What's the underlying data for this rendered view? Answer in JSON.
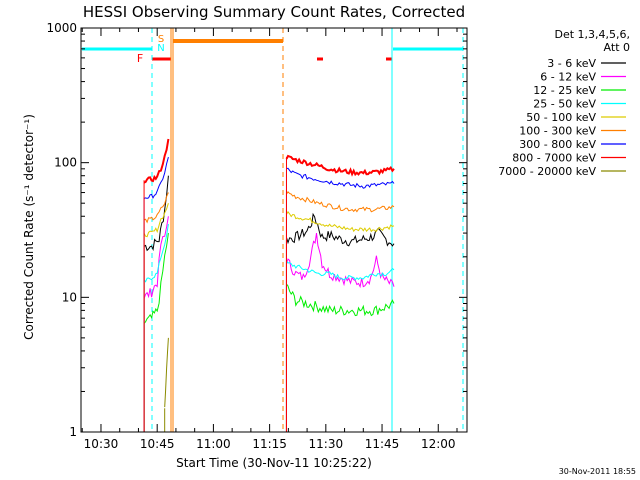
{
  "chart_data": {
    "type": "line",
    "title": "HESSI Observing Summary Count Rates, Corrected",
    "xlabel": "Start Time (30-Nov-11 10:25:22)",
    "ylabel": "Corrected Count Rate (s⁻¹ detector⁻¹)",
    "yscale": "log",
    "ylim": [
      1,
      1000
    ],
    "xlim_min": [
      24.67,
      127.67
    ],
    "x_unit": "minutes after 10:00 UT",
    "x_ticks": [
      {
        "value": 30,
        "label": "10:30"
      },
      {
        "value": 45,
        "label": "10:45"
      },
      {
        "value": 60,
        "label": "11:00"
      },
      {
        "value": 75,
        "label": "11:15"
      },
      {
        "value": 90,
        "label": "11:30"
      },
      {
        "value": 105,
        "label": "11:45"
      },
      {
        "value": 120,
        "label": "12:00"
      }
    ],
    "y_ticks": [
      {
        "value": 1,
        "label": "1"
      },
      {
        "value": 10,
        "label": "10"
      },
      {
        "value": 100,
        "label": "100"
      },
      {
        "value": 1000,
        "label": "1000"
      }
    ],
    "legend": {
      "header1": "Det 1,3,4,5,6,",
      "header2": "Att 0",
      "placement": "right"
    },
    "series": [
      {
        "name": "3 - 6 keV",
        "color": "#000000",
        "x": [
          41.5,
          43.5,
          45.5,
          47.0,
          48.0,
          79.5,
          82,
          85,
          87,
          89,
          91,
          94,
          97,
          100,
          102,
          104,
          106,
          108.2
        ],
        "y": [
          24,
          24,
          27,
          45,
          80,
          27,
          28,
          31,
          40,
          28,
          29,
          27,
          26,
          27,
          28,
          30,
          27,
          25
        ]
      },
      {
        "name": "6 - 12 keV",
        "color": "#ff00ff",
        "x": [
          41.5,
          43.5,
          45,
          46,
          47,
          48,
          79.5,
          82,
          84,
          86,
          87.5,
          89,
          91,
          94,
          97,
          100,
          102,
          103.5,
          105,
          106.5,
          108.2
        ],
        "y": [
          10,
          11,
          13,
          25,
          28,
          40,
          19,
          15,
          14,
          20,
          30,
          18,
          15,
          14,
          13,
          13,
          14,
          19,
          14,
          13,
          12
        ]
      },
      {
        "name": "12 - 25 keV",
        "color": "#00ee00",
        "x": [
          41.5,
          43.5,
          45,
          46,
          47,
          48,
          79.5,
          82,
          85,
          88,
          91,
          94,
          97,
          100,
          103,
          106,
          108.2
        ],
        "y": [
          6.5,
          7,
          8,
          12,
          20,
          30,
          12,
          9.5,
          9,
          8.5,
          8,
          8,
          8,
          8,
          8,
          8.5,
          9
        ]
      },
      {
        "name": "25 - 50 keV",
        "color": "#00ffff",
        "x": [
          41.5,
          43.5,
          45,
          46,
          47,
          48,
          79.5,
          82,
          85,
          88,
          91,
          94,
          97,
          100,
          103,
          106,
          108.2
        ],
        "y": [
          13,
          14,
          15,
          20,
          25,
          35,
          18,
          17,
          16,
          15,
          15,
          14,
          14,
          14,
          15,
          15,
          16
        ]
      },
      {
        "name": "50 - 100 keV",
        "color": "#ddcc00",
        "x": [
          41.5,
          43.5,
          45,
          46,
          47,
          48,
          79.5,
          82,
          85,
          88,
          91,
          94,
          97,
          100,
          103,
          106,
          108.2
        ],
        "y": [
          29,
          30,
          32,
          38,
          42,
          50,
          42,
          40,
          38,
          36,
          34,
          33,
          32,
          32,
          32,
          33,
          34
        ]
      },
      {
        "name": "100 - 300 keV",
        "color": "#ff7f00",
        "x": [
          41.5,
          43.5,
          45,
          46,
          47,
          48,
          79.5,
          82,
          85,
          88,
          91,
          94,
          97,
          100,
          103,
          106,
          108.2
        ],
        "y": [
          37,
          38,
          40,
          45,
          50,
          60,
          60,
          56,
          53,
          50,
          48,
          46,
          45,
          45,
          45,
          46,
          47
        ]
      },
      {
        "name": "300 - 800 keV",
        "color": "#0000ff",
        "x": [
          41.5,
          43.5,
          45,
          46,
          47,
          48,
          79.5,
          82,
          85,
          88,
          91,
          94,
          97,
          100,
          103,
          106,
          108.2
        ],
        "y": [
          55,
          56,
          60,
          70,
          85,
          110,
          90,
          82,
          78,
          75,
          72,
          70,
          68,
          67,
          68,
          69,
          70
        ]
      },
      {
        "name": "800 - 7000 keV",
        "color": "#ff0000",
        "x": [
          41.5,
          43.5,
          45,
          46,
          47,
          48,
          79.5,
          82,
          85,
          88,
          91,
          94,
          97,
          100,
          103,
          106,
          108.2
        ],
        "y": [
          74,
          75,
          78,
          90,
          110,
          150,
          110,
          105,
          100,
          95,
          90,
          87,
          85,
          84,
          85,
          87,
          90
        ]
      },
      {
        "name": "7000 - 20000 keV",
        "color": "#8b8b00",
        "x": [
          47.0,
          47.5,
          48.0
        ],
        "y": [
          1.5,
          3,
          5
        ]
      }
    ],
    "annotations": {
      "flags": [
        {
          "label": "F",
          "color": "#ff0000"
        },
        {
          "label": "S",
          "color": "#ff7f00"
        },
        {
          "label": "N",
          "color": "#00ffff"
        }
      ]
    }
  },
  "timestamp": "30-Nov-2011 18:55"
}
